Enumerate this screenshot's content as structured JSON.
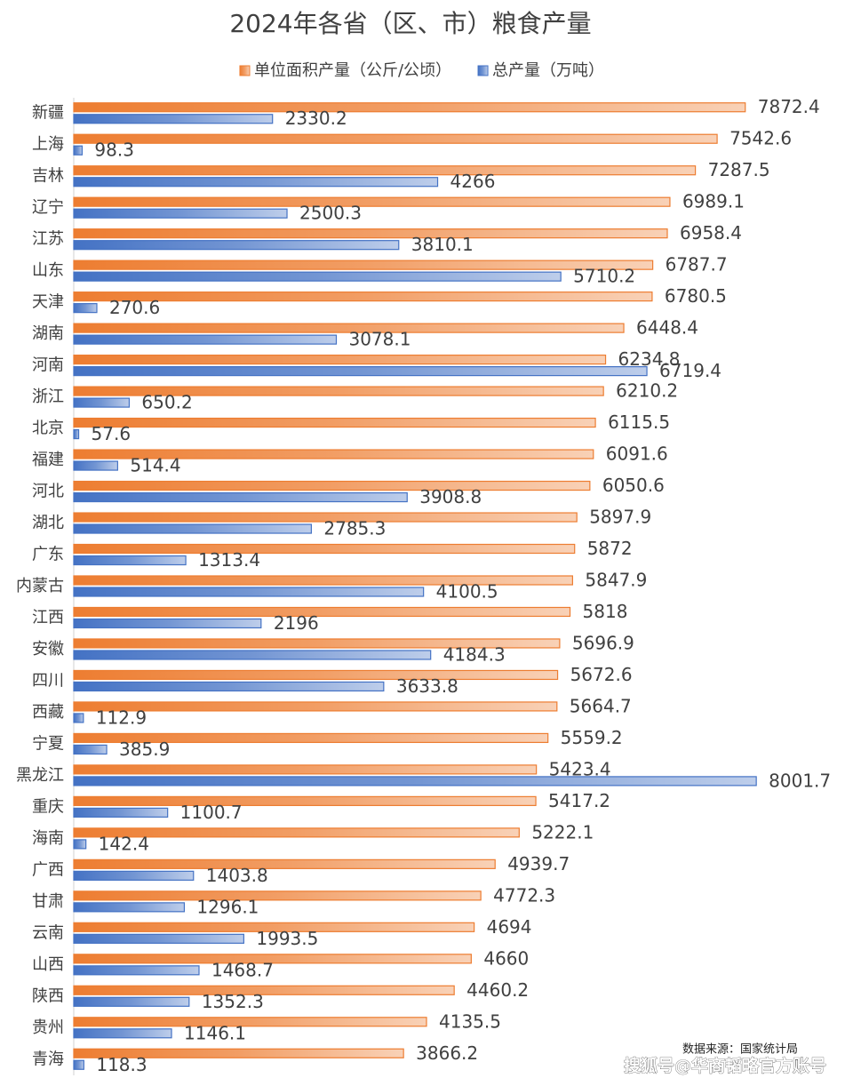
{
  "chart_data": {
    "type": "hbar",
    "title": "2024年各省（区、市）粮食产量",
    "categories": [
      "新疆",
      "上海",
      "吉林",
      "辽宁",
      "江苏",
      "山东",
      "天津",
      "湖南",
      "河南",
      "浙江",
      "北京",
      "福建",
      "河北",
      "湖北",
      "广东",
      "内蒙古",
      "江西",
      "安徽",
      "四川",
      "西藏",
      "宁夏",
      "黑龙江",
      "重庆",
      "海南",
      "广西",
      "甘肃",
      "云南",
      "山西",
      "陕西",
      "贵州",
      "青海"
    ],
    "series": [
      {
        "name": "单位面积产量（公斤/公顷）",
        "color": "#ed7d31",
        "values": [
          7872.4,
          7542.6,
          7287.5,
          6989.1,
          6958.4,
          6787.7,
          6780.5,
          6448.4,
          6234.8,
          6210.2,
          6115.5,
          6091.6,
          6050.6,
          5897.9,
          5872,
          5847.9,
          5818,
          5696.9,
          5672.6,
          5664.7,
          5559.2,
          5423.4,
          5417.2,
          5222.1,
          4939.7,
          4772.3,
          4694,
          4660,
          4460.2,
          4135.5,
          3866.2
        ]
      },
      {
        "name": "总产量（万吨）",
        "color": "#4472c4",
        "values": [
          2330.2,
          98.3,
          4266,
          2500.3,
          3810.1,
          5710.2,
          270.6,
          3078.1,
          6719.4,
          650.2,
          57.6,
          514.4,
          3908.8,
          2785.3,
          1313.4,
          4100.5,
          2196,
          4184.3,
          3633.8,
          112.9,
          385.9,
          8001.7,
          1100.7,
          142.4,
          1403.8,
          1296.1,
          1993.5,
          1468.7,
          1352.3,
          1146.1,
          118.3
        ]
      }
    ],
    "xlim": [
      0,
      9000
    ],
    "legend": "top",
    "source": "数据来源：国家统计局",
    "watermark": "搜狐号@华商韬略官方账号"
  }
}
